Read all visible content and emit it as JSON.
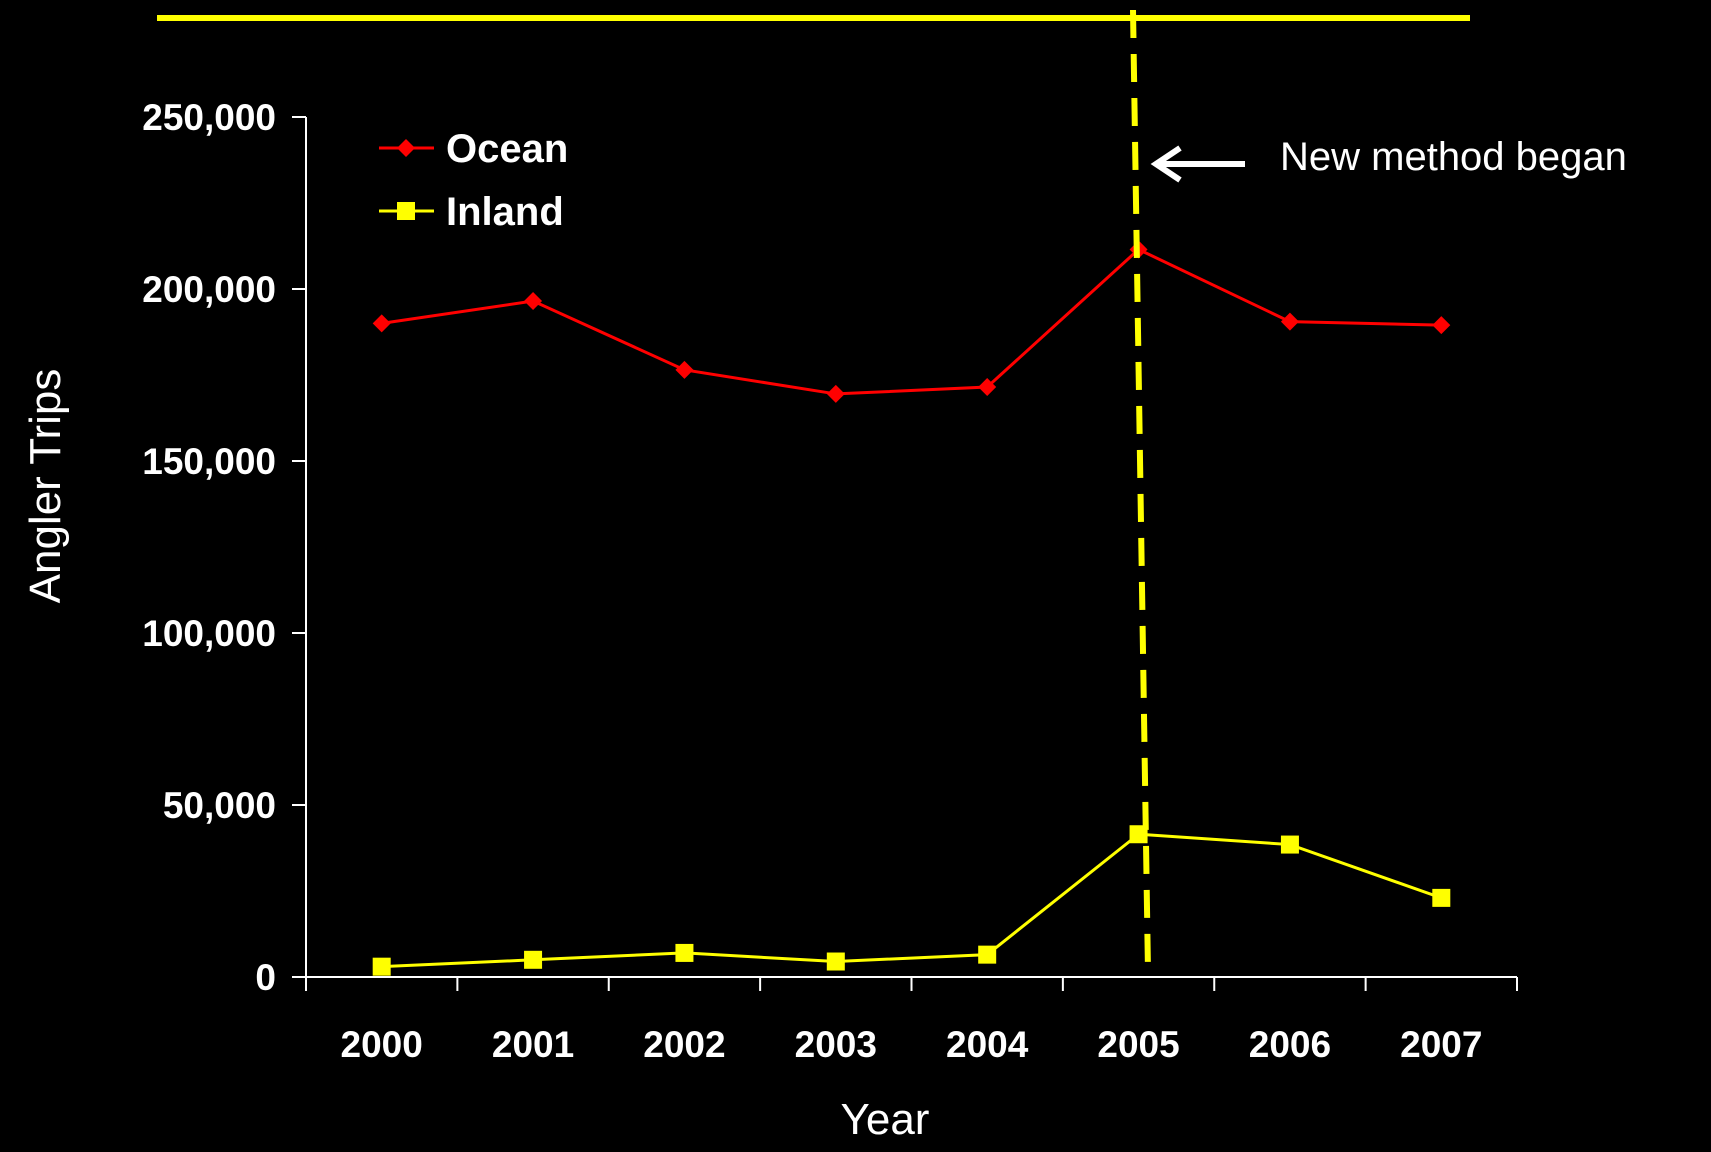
{
  "chart_data": {
    "type": "line",
    "title": "",
    "xlabel": "Year",
    "ylabel": "Angler Trips",
    "categories": [
      "2000",
      "2001",
      "2002",
      "2003",
      "2004",
      "2005",
      "2006",
      "2007"
    ],
    "ylim": [
      0,
      250000
    ],
    "yticks": [
      0,
      50000,
      100000,
      150000,
      200000,
      250000
    ],
    "ytick_labels": [
      "0",
      "50,000",
      "100,000",
      "150,000",
      "200,000",
      "250,000"
    ],
    "grid": false,
    "legend_position": "top-left",
    "background": "#000000",
    "series": [
      {
        "name": "Ocean",
        "color": "#ff0000",
        "marker": "diamond",
        "values": [
          190000,
          196500,
          176500,
          169500,
          171500,
          211500,
          190500,
          189500
        ]
      },
      {
        "name": "Inland",
        "color": "#ffff00",
        "marker": "square",
        "values": [
          3000,
          5000,
          7000,
          4500,
          6500,
          41500,
          38500,
          23000
        ]
      }
    ],
    "annotations": [
      {
        "text": "New method began",
        "category": "2005",
        "style": "dashed vertical line with arrow",
        "color": "#ffff00"
      }
    ],
    "top_rule_color": "#ffff00"
  }
}
